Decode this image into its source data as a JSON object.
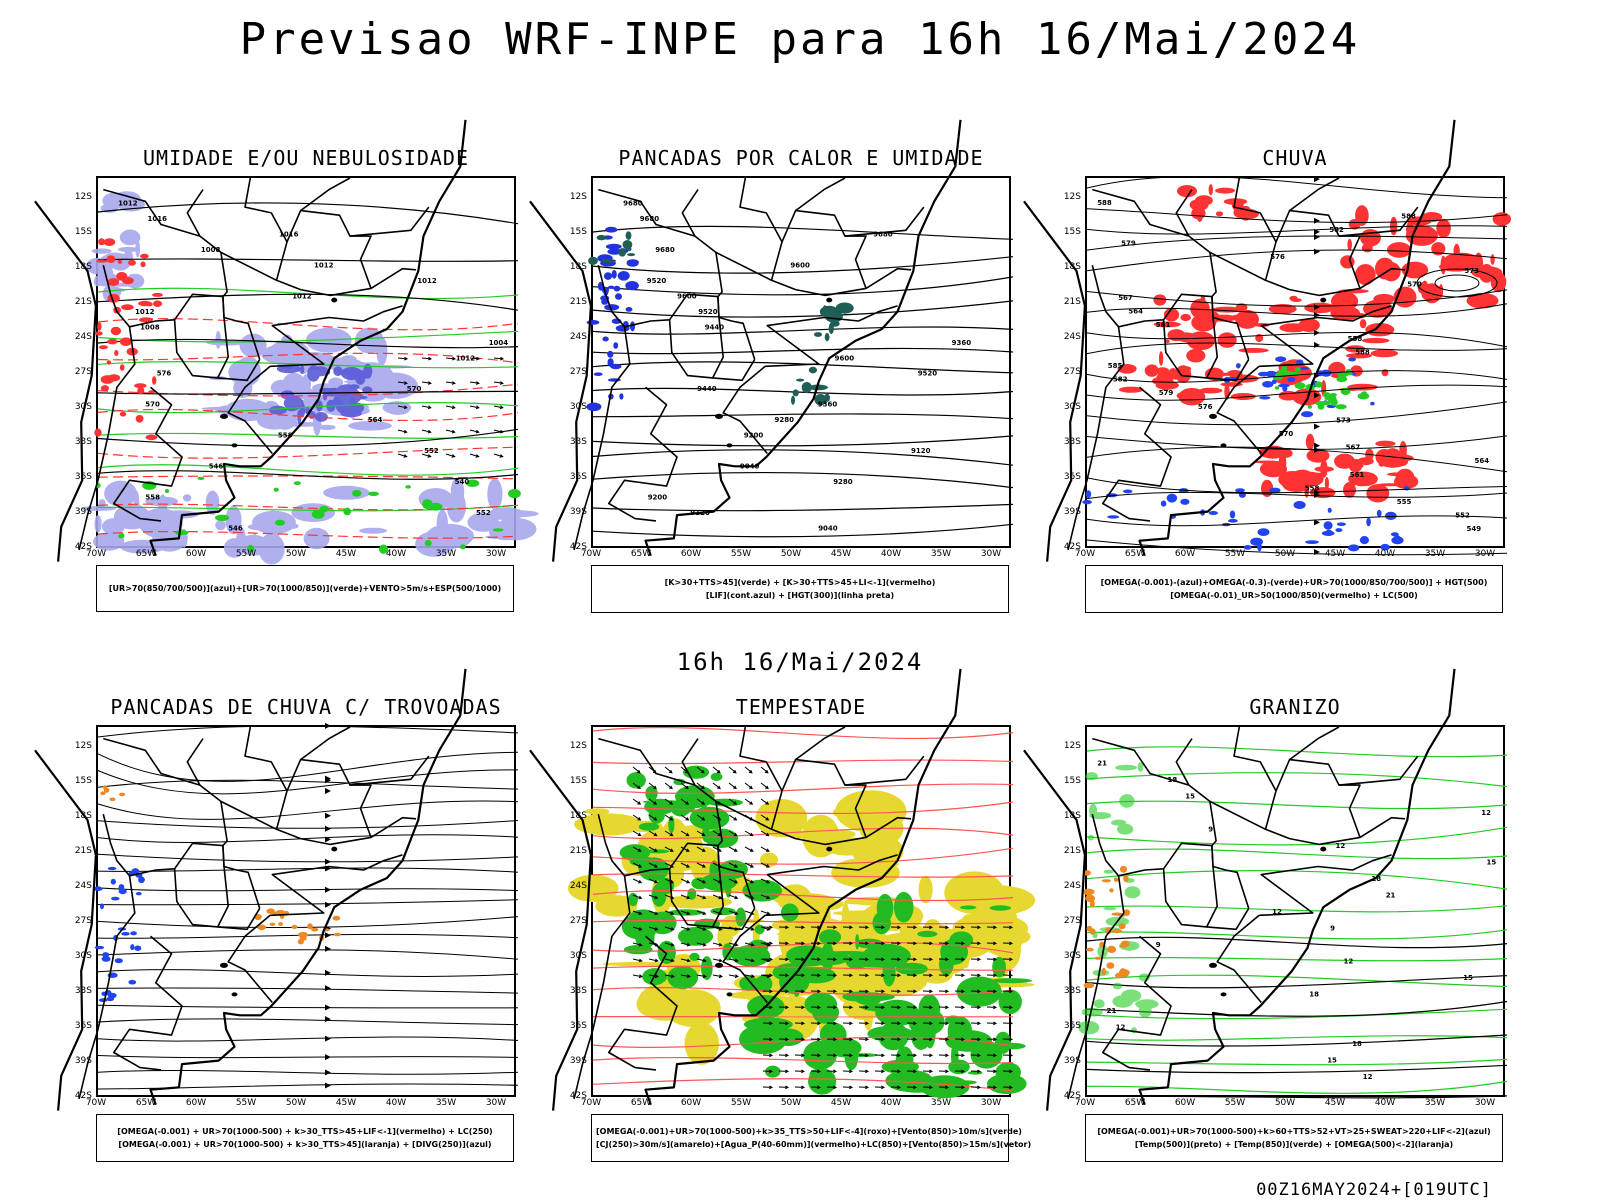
{
  "header": {
    "title": "Previsao WRF-INPE  para 16h 16/Mai/2024",
    "subtitle": "16h 16/Mai/2024",
    "run_stamp": "00Z16MAY2024+[019UTC]"
  },
  "chart_data": [
    {
      "type": "map",
      "title": "UMIDADE E/OU NEBULOSIDADE",
      "lat_ticks": [
        "12S",
        "15S",
        "18S",
        "21S",
        "24S",
        "27S",
        "30S",
        "33S",
        "36S",
        "39S",
        "42S"
      ],
      "lon_ticks": [
        "70W",
        "65W",
        "60W",
        "55W",
        "50W",
        "45W",
        "40W",
        "35W",
        "30W"
      ],
      "contour_labels": [
        "1012",
        "1016",
        "1016",
        "1008",
        "1012",
        "1012",
        "1012",
        "1012",
        "1008",
        "1004",
        "1012",
        "576",
        "570",
        "570",
        "564",
        "558",
        "552",
        "546",
        "540",
        "558",
        "552",
        "546"
      ],
      "legend": [
        "[UR>70(850/700/500)](azul)+[UR>70(1000/850)](verde)+VENTO>5m/s+ESP(500/1000)"
      ],
      "colors": {
        "azul": "#9a9ae8",
        "verde": "#22cc22",
        "vermelho": "#ff3333"
      }
    },
    {
      "type": "map",
      "title": "PANCADAS POR CALOR E UMIDADE",
      "lat_ticks": [
        "12S",
        "15S",
        "18S",
        "21S",
        "24S",
        "27S",
        "30S",
        "33S",
        "36S",
        "39S",
        "42S"
      ],
      "lon_ticks": [
        "70W",
        "65W",
        "60W",
        "55W",
        "50W",
        "45W",
        "40W",
        "35W",
        "30W"
      ],
      "contour_labels": [
        "9680",
        "9680",
        "9680",
        "9680",
        "9600",
        "9520",
        "9600",
        "9520",
        "9440",
        "9360",
        "9600",
        "9520",
        "9440",
        "9360",
        "9280",
        "9200",
        "9120",
        "9040",
        "9280",
        "9200",
        "9120",
        "9040"
      ],
      "legend": [
        "[K>30+TTS>45](verde) + [K>30+TTS>45+LI<-1](vermelho)",
        "[LIF](cont.azul) + [HGT(300)](linha preta)"
      ],
      "colors": {
        "verde": "#1f5f55",
        "azul": "#2233dd"
      }
    },
    {
      "type": "map",
      "title": "CHUVA",
      "lat_ticks": [
        "12S",
        "15S",
        "18S",
        "21S",
        "24S",
        "27S",
        "30S",
        "33S",
        "36S",
        "39S",
        "42S"
      ],
      "lon_ticks": [
        "70W",
        "65W",
        "60W",
        "55W",
        "50W",
        "45W",
        "40W",
        "35W",
        "30W"
      ],
      "contour_labels": [
        "588",
        "588",
        "582",
        "579",
        "576",
        "573",
        "570",
        "567",
        "564",
        "561",
        "558",
        "588",
        "585",
        "582",
        "579",
        "576",
        "573",
        "570",
        "567",
        "564",
        "561",
        "558",
        "555",
        "552",
        "549"
      ],
      "legend": [
        "[OMEGA(-0.001)-(azul)+OMEGA(-0.3)-(verde)+UR>70(1000/850/700/500)] + HGT(500)",
        "[OMEGA(-0.01)_UR>50(1000/850)(vermelho) + LC(500)"
      ],
      "colors": {
        "vermelho": "#ff3333",
        "azul": "#2244ee",
        "verde": "#22cc22"
      }
    },
    {
      "type": "map",
      "title": "PANCADAS DE CHUVA C/ TROVOADAS",
      "lat_ticks": [
        "12S",
        "15S",
        "18S",
        "21S",
        "24S",
        "27S",
        "30S",
        "33S",
        "36S",
        "39S",
        "42S"
      ],
      "lon_ticks": [
        "70W",
        "65W",
        "60W",
        "55W",
        "50W",
        "45W",
        "40W",
        "35W",
        "30W"
      ],
      "contour_labels": [],
      "legend": [
        "[OMEGA(-0.001) + UR>70(1000-500) + k>30_TTS>45+LIF<-1](vermelho) + LC(250)",
        "[OMEGA(-0.001) + UR>70(1000-500) + k>30_TTS>45](laranja) + [DIVG(250)](azul)"
      ],
      "colors": {
        "laranja": "#ee8822",
        "azul": "#2244ee"
      }
    },
    {
      "type": "map",
      "title": "TEMPESTADE",
      "lat_ticks": [
        "12S",
        "15S",
        "18S",
        "21S",
        "24S",
        "27S",
        "30S",
        "33S",
        "36S",
        "39S",
        "42S"
      ],
      "lon_ticks": [
        "70W",
        "65W",
        "60W",
        "55W",
        "50W",
        "45W",
        "40W",
        "35W",
        "30W"
      ],
      "contour_labels": [],
      "legend": [
        "[OMEGA(-0.001)+UR>70(1000-500)+k>35_TTS>50+LIF<-4](roxo)+[Vento(850)>10m/s](verde)",
        "[CJ(250)>30m/s](amarelo)+[Agua_P(40-60mm)](vermelho)+LC(850)+[Vento(850)>15m/s](vetor)"
      ],
      "colors": {
        "verde": "#22bb22",
        "amarelo": "#e6d830",
        "vermelho": "#ff5555"
      }
    },
    {
      "type": "map",
      "title": "GRANIZO",
      "lat_ticks": [
        "12S",
        "15S",
        "18S",
        "21S",
        "24S",
        "27S",
        "30S",
        "33S",
        "36S",
        "39S",
        "42S"
      ],
      "lon_ticks": [
        "70W",
        "65W",
        "60W",
        "55W",
        "50W",
        "45W",
        "40W",
        "35W",
        "30W"
      ],
      "contour_labels": [
        "21",
        "18",
        "15",
        "12",
        "9",
        "12",
        "15",
        "18",
        "21",
        "12",
        "9",
        "9",
        "12",
        "15",
        "18",
        "21",
        "12",
        "18",
        "15",
        "12"
      ],
      "legend": [
        "[OMEGA(-0.001)+UR>70(1000-500)+k>60+TTS>52+VT>25+SWEAT>220+LIF<-2](azul)",
        "[Temp(500)](preto) + [Temp(850)](verde) + [OMEGA(500)<-2](laranja)"
      ],
      "colors": {
        "verde": "#22cc22",
        "laranja": "#ee8822"
      }
    }
  ]
}
